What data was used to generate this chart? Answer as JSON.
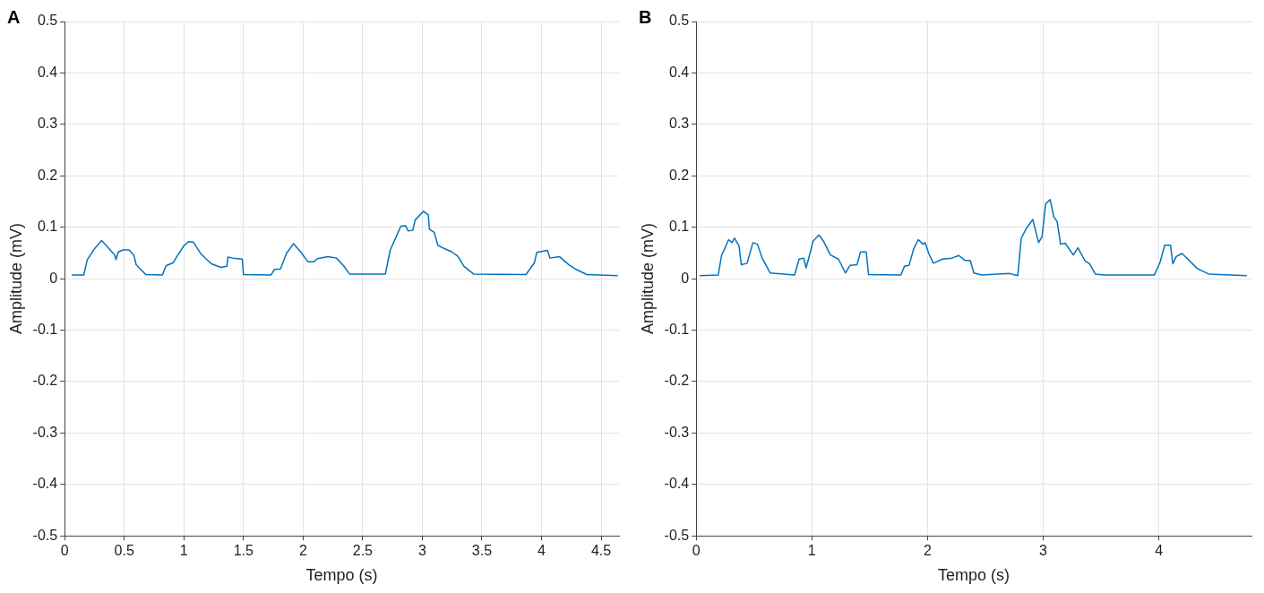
{
  "chart_data": [
    {
      "type": "line",
      "title": "A",
      "xlabel": "Tempo (s)",
      "ylabel": "Amplitude (mV)",
      "xlim": [
        0,
        4.65
      ],
      "xticks": [
        0,
        0.5,
        1,
        1.5,
        2,
        2.5,
        3,
        3.5,
        4,
        4.5
      ],
      "ylim": [
        -0.5,
        0.5
      ],
      "yticks": [
        -0.5,
        -0.4,
        -0.3,
        -0.2,
        -0.1,
        0,
        0.1,
        0.2,
        0.3,
        0.4,
        0.5
      ],
      "grid": true,
      "legend": false,
      "marker": "none",
      "line_style": "solid",
      "series": [
        {
          "color": "#0072bd",
          "x": [
            0.06,
            0.16,
            0.19,
            0.25,
            0.31,
            0.35,
            0.42,
            0.43,
            0.45,
            0.49,
            0.54,
            0.58,
            0.6,
            0.68,
            0.82,
            0.85,
            0.91,
            0.95,
            1.0,
            1.04,
            1.08,
            1.14,
            1.23,
            1.31,
            1.36,
            1.37,
            1.41,
            1.49,
            1.5,
            1.73,
            1.76,
            1.81,
            1.86,
            1.92,
            1.98,
            2.04,
            2.09,
            2.12,
            2.21,
            2.28,
            2.34,
            2.39,
            2.69,
            2.73,
            2.82,
            2.86,
            2.88,
            2.92,
            2.94,
            3.01,
            3.05,
            3.06,
            3.1,
            3.13,
            3.19,
            3.25,
            3.3,
            3.35,
            3.43,
            3.87,
            3.94,
            3.96,
            4.05,
            4.07,
            4.15,
            4.23,
            4.29,
            4.38,
            4.64
          ],
          "values": [
            0.007,
            0.007,
            0.037,
            0.058,
            0.074,
            0.064,
            0.046,
            0.037,
            0.052,
            0.056,
            0.056,
            0.046,
            0.027,
            0.008,
            0.007,
            0.025,
            0.031,
            0.046,
            0.064,
            0.072,
            0.071,
            0.049,
            0.029,
            0.022,
            0.024,
            0.042,
            0.04,
            0.038,
            0.008,
            0.007,
            0.018,
            0.019,
            0.049,
            0.068,
            0.052,
            0.033,
            0.033,
            0.039,
            0.043,
            0.04,
            0.025,
            0.009,
            0.009,
            0.055,
            0.102,
            0.103,
            0.093,
            0.094,
            0.114,
            0.131,
            0.124,
            0.096,
            0.09,
            0.065,
            0.058,
            0.052,
            0.043,
            0.024,
            0.009,
            0.008,
            0.031,
            0.051,
            0.055,
            0.04,
            0.043,
            0.027,
            0.018,
            0.008,
            0.006
          ]
        }
      ]
    },
    {
      "type": "line",
      "title": "B",
      "xlabel": "Tempo (s)",
      "ylabel": "Amplitude (mV)",
      "xlim": [
        0,
        4.8
      ],
      "xticks": [
        0,
        1,
        2,
        3,
        4
      ],
      "ylim": [
        -0.5,
        0.5
      ],
      "yticks": [
        -0.5,
        -0.4,
        -0.3,
        -0.2,
        -0.1,
        0,
        0.1,
        0.2,
        0.3,
        0.4,
        0.5
      ],
      "grid": true,
      "legend": false,
      "marker": "none",
      "line_style": "solid",
      "series": [
        {
          "color": "#0072bd",
          "x": [
            0.03,
            0.19,
            0.22,
            0.24,
            0.28,
            0.31,
            0.33,
            0.37,
            0.39,
            0.44,
            0.49,
            0.53,
            0.57,
            0.64,
            0.85,
            0.89,
            0.93,
            0.95,
            0.98,
            1.01,
            1.06,
            1.1,
            1.16,
            1.23,
            1.29,
            1.33,
            1.39,
            1.42,
            1.47,
            1.49,
            1.77,
            1.8,
            1.84,
            1.88,
            1.92,
            1.96,
            1.98,
            2.01,
            2.05,
            2.13,
            2.21,
            2.27,
            2.32,
            2.37,
            2.4,
            2.47,
            2.71,
            2.78,
            2.81,
            2.86,
            2.89,
            2.91,
            2.96,
            2.99,
            3.02,
            3.06,
            3.09,
            3.12,
            3.15,
            3.19,
            3.26,
            3.3,
            3.36,
            3.4,
            3.45,
            3.53,
            3.96,
            4.01,
            4.05,
            4.1,
            4.12,
            4.15,
            4.2,
            4.25,
            4.33,
            4.43,
            4.76
          ],
          "values": [
            0.006,
            0.007,
            0.046,
            0.055,
            0.076,
            0.07,
            0.079,
            0.064,
            0.027,
            0.03,
            0.07,
            0.067,
            0.04,
            0.011,
            0.007,
            0.038,
            0.04,
            0.021,
            0.046,
            0.073,
            0.085,
            0.073,
            0.046,
            0.038,
            0.011,
            0.026,
            0.027,
            0.052,
            0.052,
            0.008,
            0.007,
            0.024,
            0.026,
            0.058,
            0.076,
            0.067,
            0.07,
            0.049,
            0.03,
            0.038,
            0.04,
            0.045,
            0.036,
            0.035,
            0.011,
            0.007,
            0.01,
            0.006,
            0.079,
            0.1,
            0.109,
            0.115,
            0.07,
            0.082,
            0.145,
            0.154,
            0.121,
            0.111,
            0.067,
            0.069,
            0.046,
            0.06,
            0.035,
            0.029,
            0.009,
            0.007,
            0.007,
            0.032,
            0.065,
            0.065,
            0.029,
            0.043,
            0.049,
            0.038,
            0.02,
            0.009,
            0.006
          ]
        }
      ]
    }
  ]
}
